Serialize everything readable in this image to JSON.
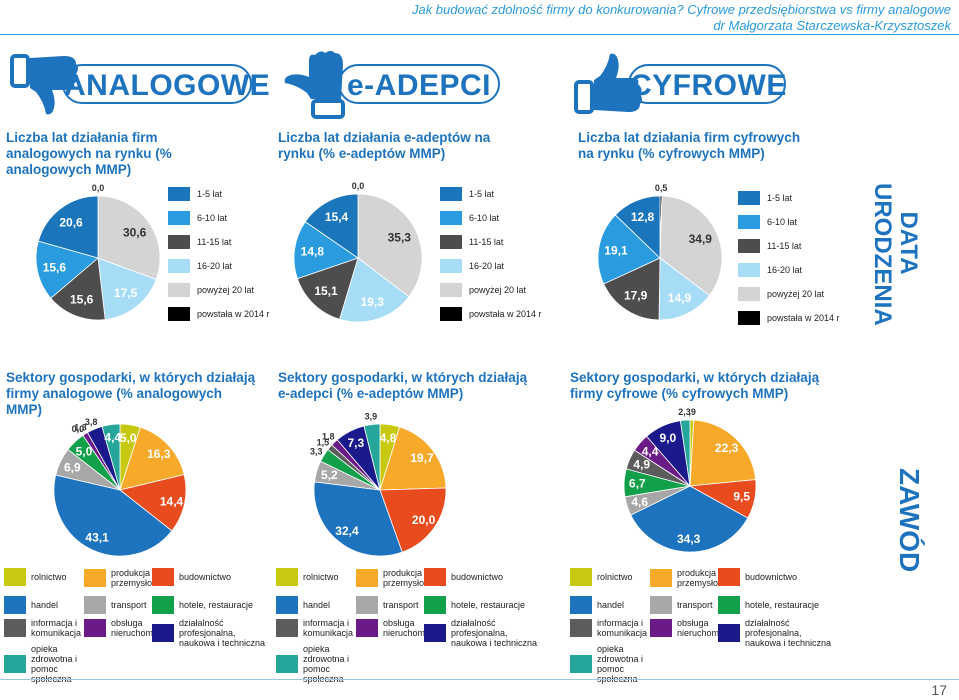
{
  "header": {
    "line1": "Jak budować zdolność firmy do konkurowania? Cyfrowe przedsiębiorstwa vs firmy analogowe",
    "line2": "dr Małgorzata Starczewska-Krzysztoszek"
  },
  "bands": {
    "analog": "ANALOGOWE",
    "eadopt": "e-ADEPCI",
    "digital": "CYFROWE"
  },
  "side_labels": {
    "top_line1": "DATA",
    "top_line2": "URODZENIA",
    "bottom": "ZAWÓD"
  },
  "age_legend": [
    "1-5 lat",
    "6-10 lat",
    "11-15 lat",
    "16-20 lat",
    "powyżej 20 lat",
    "powstała w 2014 r"
  ],
  "age_colors": [
    "#1b75bb",
    "#2b9be0",
    "#4d4d4d",
    "#a7dcf6",
    "#d4d4d4",
    "#000000"
  ],
  "sector_legend": [
    [
      "rolnictwo",
      "produkcja przemysłowa",
      "budownictwo"
    ],
    [
      "handel",
      "transport",
      "hotele, restauracje"
    ],
    [
      "informacja i komunikacja",
      "obsługa nieruchomości",
      "działalność profesjonalna, naukowa i techniczna"
    ],
    [
      "opieka zdrowotna i pomoc społeczna"
    ]
  ],
  "sector_colors": [
    "#c6c90f",
    "#f7a929",
    "#e84c1e",
    "#1e73be",
    "#a7a7a7",
    "#12a14a",
    "#5c5c5c",
    "#6a1b87",
    "#1a1a8c",
    "#26a69a"
  ],
  "page_number": "17",
  "chart_data": [
    {
      "type": "pie",
      "title": "Liczba lat działania firm analogowych na rynku (% analogowych MMP)",
      "categories": [
        "powstała w 2014 r",
        "powyżej 20 lat",
        "16-20 lat",
        "11-15 lat",
        "6-10 lat",
        "1-5 lat"
      ],
      "values": [
        0.0,
        30.6,
        17.5,
        15.6,
        15.6,
        20.6
      ],
      "labels": [
        "0,0",
        "30,6",
        "17,5",
        "15,6",
        "15,6",
        "20,6"
      ],
      "colors": [
        "#000000",
        "#d4d4d4",
        "#a7dcf6",
        "#4d4d4d",
        "#2b9be0",
        "#1b75bb"
      ]
    },
    {
      "type": "pie",
      "title": "Liczba lat działania e-adeptów na rynku (% e-adeptów MMP)",
      "categories": [
        "powstała w 2014 r",
        "powyżej 20 lat",
        "16-20 lat",
        "11-15 lat",
        "6-10 lat",
        "1-5 lat"
      ],
      "values": [
        0.0,
        35.3,
        19.3,
        15.1,
        14.8,
        15.4
      ],
      "labels": [
        "0,0",
        "35,3",
        "19,3",
        "15,1",
        "14,8",
        "15,4"
      ],
      "colors": [
        "#000000",
        "#d4d4d4",
        "#a7dcf6",
        "#4d4d4d",
        "#2b9be0",
        "#1b75bb"
      ]
    },
    {
      "type": "pie",
      "title": "Liczba lat działania firm cyfrowych na rynku (% cyfrowych MMP)",
      "categories": [
        "powstała w 2014 r",
        "powyżej 20 lat",
        "16-20 lat",
        "11-15 lat",
        "6-10 lat",
        "1-5 lat"
      ],
      "values": [
        0.5,
        34.9,
        14.9,
        17.9,
        19.1,
        12.8
      ],
      "labels": [
        "0,5",
        "34,9",
        "14,9",
        "17,9",
        "19,1",
        "12,8"
      ],
      "colors": [
        "#000000",
        "#d4d4d4",
        "#a7dcf6",
        "#4d4d4d",
        "#2b9be0",
        "#1b75bb"
      ]
    },
    {
      "type": "pie",
      "title": "Sektory gospodarki, w których działają firmy analogowe (% analogowych MMP)",
      "categories": [
        "rolnictwo",
        "produkcja przemysłowa",
        "budownictwo",
        "handel",
        "transport",
        "hotele, restauracje",
        "informacja i komunikacja",
        "obsługa nieruchomości",
        "działalność profesjonalna, naukowa i techniczna",
        "opieka zdrowotna i pomoc społeczna"
      ],
      "values": [
        5.0,
        16.3,
        14.4,
        43.1,
        6.9,
        5.0,
        0.0,
        1.3,
        3.8,
        4.4
      ],
      "labels": [
        "5,0",
        "16,3",
        "14,4",
        "43,1",
        "6,9",
        "5,0",
        "0,0",
        "1,3",
        "3,8",
        "4,4"
      ],
      "colors": [
        "#c6c90f",
        "#f7a929",
        "#e84c1e",
        "#1e73be",
        "#a7a7a7",
        "#12a14a",
        "#5c5c5c",
        "#6a1b87",
        "#1a1a8c",
        "#26a69a"
      ]
    },
    {
      "type": "pie",
      "title": "Sektory gospodarki, w których działają e-adepci (% e-adeptów MMP)",
      "categories": [
        "rolnictwo",
        "produkcja przemysłowa",
        "budownictwo",
        "handel",
        "transport",
        "hotele, restauracje",
        "informacja i komunikacja",
        "obsługa nieruchomości",
        "działalność profesjonalna, naukowa i techniczna",
        "opieka zdrowotna i pomoc społeczna"
      ],
      "values": [
        4.8,
        19.7,
        20.0,
        32.4,
        5.2,
        3.3,
        1.5,
        1.8,
        7.3,
        3.9
      ],
      "labels": [
        "4,8",
        "19,7",
        "20,0",
        "32,4",
        "5,2",
        "3,3",
        "1,5",
        "1,8",
        "7,3",
        "3,9"
      ],
      "colors": [
        "#c6c90f",
        "#f7a929",
        "#e84c1e",
        "#1e73be",
        "#a7a7a7",
        "#12a14a",
        "#5c5c5c",
        "#6a1b87",
        "#1a1a8c",
        "#26a69a"
      ]
    },
    {
      "type": "pie",
      "title": "Sektory gospodarki, w których działają firmy cyfrowe (% cyfrowych MMP)",
      "categories": [
        "rolnictwo",
        "produkcja przemysłowa",
        "budownictwo",
        "handel",
        "transport",
        "hotele, restauracje",
        "informacja i komunikacja",
        "obsługa nieruchomości",
        "działalność profesjonalna, naukowa i techniczna",
        "opieka zdrowotna i pomoc społeczna"
      ],
      "values": [
        0.9,
        22.3,
        9.5,
        34.3,
        4.6,
        6.7,
        4.9,
        4.4,
        9.0,
        2.3
      ],
      "labels": [
        ",9",
        "22,3",
        "9,5",
        "34,3",
        "4,6",
        "6,7",
        "4,9",
        "4,4",
        "9,0",
        "2,3"
      ],
      "colors": [
        "#c6c90f",
        "#f7a929",
        "#e84c1e",
        "#1e73be",
        "#a7a7a7",
        "#12a14a",
        "#5c5c5c",
        "#6a1b87",
        "#1a1a8c",
        "#26a69a"
      ]
    }
  ]
}
